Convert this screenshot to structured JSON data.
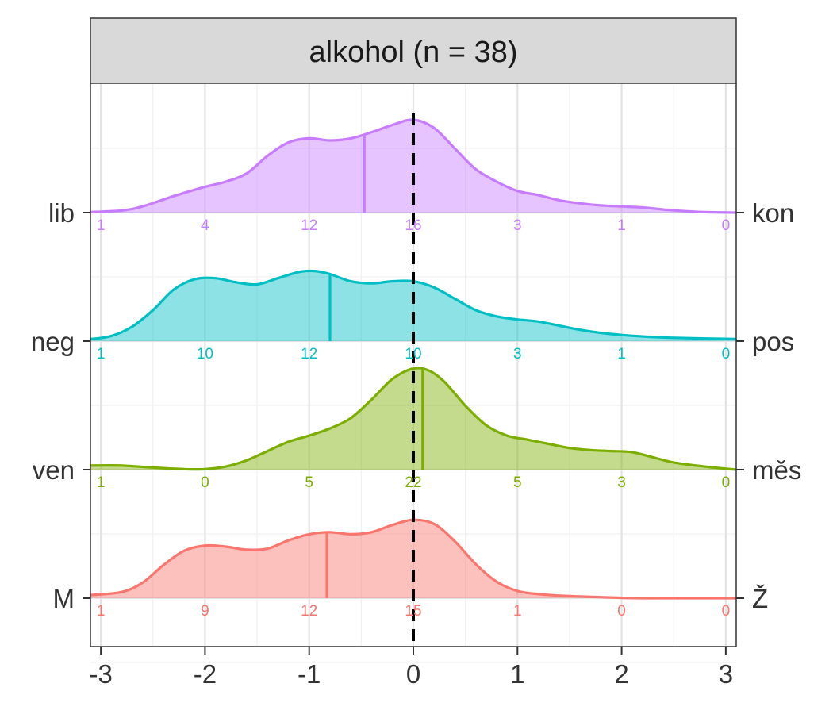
{
  "chart_data": {
    "type": "ridgeline",
    "panel_title": "alkohol (n = 38)",
    "x_ticks": [
      -3,
      -2,
      -1,
      0,
      1,
      2,
      3
    ],
    "x_tick_labels": [
      "-3",
      "-2",
      "-1",
      "0",
      "1",
      "2",
      "3"
    ],
    "xlim": [
      -3.1,
      3.1
    ],
    "reference_line_x": 0,
    "count_positions": [
      -3,
      -2,
      -1,
      0,
      1,
      2,
      3
    ],
    "grid": true,
    "series": [
      {
        "left_label": "lib",
        "right_label": "kon",
        "color": "#C77CFF",
        "mean": -0.47,
        "counts": [
          "1",
          "4",
          "12",
          "16",
          "3",
          "1",
          "0"
        ],
        "density": [
          [
            -3.1,
            0.005
          ],
          [
            -2.8,
            0.02
          ],
          [
            -2.6,
            0.06
          ],
          [
            -2.3,
            0.16
          ],
          [
            -2.0,
            0.25
          ],
          [
            -1.8,
            0.3
          ],
          [
            -1.6,
            0.38
          ],
          [
            -1.4,
            0.55
          ],
          [
            -1.2,
            0.68
          ],
          [
            -1.0,
            0.72
          ],
          [
            -0.8,
            0.7
          ],
          [
            -0.6,
            0.72
          ],
          [
            -0.4,
            0.78
          ],
          [
            -0.2,
            0.85
          ],
          [
            0.0,
            0.9
          ],
          [
            0.2,
            0.82
          ],
          [
            0.4,
            0.62
          ],
          [
            0.6,
            0.42
          ],
          [
            0.8,
            0.3
          ],
          [
            1.0,
            0.21
          ],
          [
            1.2,
            0.17
          ],
          [
            1.4,
            0.12
          ],
          [
            1.6,
            0.09
          ],
          [
            1.8,
            0.07
          ],
          [
            2.0,
            0.06
          ],
          [
            2.2,
            0.05
          ],
          [
            2.4,
            0.03
          ],
          [
            2.6,
            0.015
          ],
          [
            2.8,
            0.005
          ],
          [
            3.1,
            0.0
          ]
        ]
      },
      {
        "left_label": "neg",
        "right_label": "pos",
        "color": "#00BFC4",
        "mean": -0.8,
        "counts": [
          "1",
          "10",
          "12",
          "10",
          "3",
          "1",
          "0"
        ],
        "density": [
          [
            -3.1,
            0.02
          ],
          [
            -2.9,
            0.05
          ],
          [
            -2.7,
            0.14
          ],
          [
            -2.5,
            0.3
          ],
          [
            -2.3,
            0.5
          ],
          [
            -2.1,
            0.6
          ],
          [
            -1.9,
            0.61
          ],
          [
            -1.7,
            0.57
          ],
          [
            -1.5,
            0.55
          ],
          [
            -1.3,
            0.61
          ],
          [
            -1.1,
            0.67
          ],
          [
            -0.95,
            0.68
          ],
          [
            -0.8,
            0.65
          ],
          [
            -0.6,
            0.58
          ],
          [
            -0.4,
            0.56
          ],
          [
            -0.2,
            0.58
          ],
          [
            0.0,
            0.58
          ],
          [
            0.2,
            0.52
          ],
          [
            0.4,
            0.41
          ],
          [
            0.6,
            0.3
          ],
          [
            0.8,
            0.24
          ],
          [
            1.0,
            0.21
          ],
          [
            1.2,
            0.19
          ],
          [
            1.4,
            0.15
          ],
          [
            1.6,
            0.11
          ],
          [
            1.8,
            0.08
          ],
          [
            2.0,
            0.06
          ],
          [
            2.3,
            0.04
          ],
          [
            2.6,
            0.03
          ],
          [
            3.1,
            0.02
          ]
        ]
      },
      {
        "left_label": "ven",
        "right_label": "měs",
        "color": "#7CAE00",
        "mean": 0.09,
        "counts": [
          "1",
          "0",
          "5",
          "22",
          "5",
          "3",
          "0"
        ],
        "density": [
          [
            -3.1,
            0.04
          ],
          [
            -2.8,
            0.04
          ],
          [
            -2.5,
            0.02
          ],
          [
            -2.2,
            0.005
          ],
          [
            -2.0,
            0.005
          ],
          [
            -1.8,
            0.03
          ],
          [
            -1.6,
            0.09
          ],
          [
            -1.4,
            0.18
          ],
          [
            -1.2,
            0.27
          ],
          [
            -1.0,
            0.33
          ],
          [
            -0.8,
            0.4
          ],
          [
            -0.6,
            0.5
          ],
          [
            -0.4,
            0.68
          ],
          [
            -0.2,
            0.88
          ],
          [
            0.0,
            0.98
          ],
          [
            0.15,
            0.96
          ],
          [
            0.3,
            0.85
          ],
          [
            0.5,
            0.62
          ],
          [
            0.7,
            0.43
          ],
          [
            0.9,
            0.33
          ],
          [
            1.1,
            0.29
          ],
          [
            1.3,
            0.25
          ],
          [
            1.5,
            0.21
          ],
          [
            1.7,
            0.19
          ],
          [
            1.9,
            0.18
          ],
          [
            2.1,
            0.17
          ],
          [
            2.3,
            0.12
          ],
          [
            2.5,
            0.07
          ],
          [
            2.8,
            0.03
          ],
          [
            3.1,
            0.0
          ]
        ]
      },
      {
        "left_label": "M",
        "right_label": "Ž",
        "color": "#F8766D",
        "mean": -0.83,
        "counts": [
          "1",
          "9",
          "12",
          "15",
          "1",
          "0",
          "0"
        ],
        "density": [
          [
            -3.1,
            0.03
          ],
          [
            -2.8,
            0.06
          ],
          [
            -2.6,
            0.15
          ],
          [
            -2.4,
            0.32
          ],
          [
            -2.2,
            0.46
          ],
          [
            -2.0,
            0.51
          ],
          [
            -1.8,
            0.5
          ],
          [
            -1.6,
            0.47
          ],
          [
            -1.4,
            0.48
          ],
          [
            -1.2,
            0.56
          ],
          [
            -1.0,
            0.62
          ],
          [
            -0.8,
            0.64
          ],
          [
            -0.6,
            0.62
          ],
          [
            -0.4,
            0.64
          ],
          [
            -0.2,
            0.71
          ],
          [
            0.0,
            0.76
          ],
          [
            0.2,
            0.72
          ],
          [
            0.4,
            0.55
          ],
          [
            0.6,
            0.33
          ],
          [
            0.8,
            0.16
          ],
          [
            1.0,
            0.07
          ],
          [
            1.2,
            0.04
          ],
          [
            1.5,
            0.02
          ],
          [
            1.8,
            0.01
          ],
          [
            2.2,
            0.0
          ],
          [
            3.1,
            0.0
          ]
        ]
      }
    ]
  }
}
